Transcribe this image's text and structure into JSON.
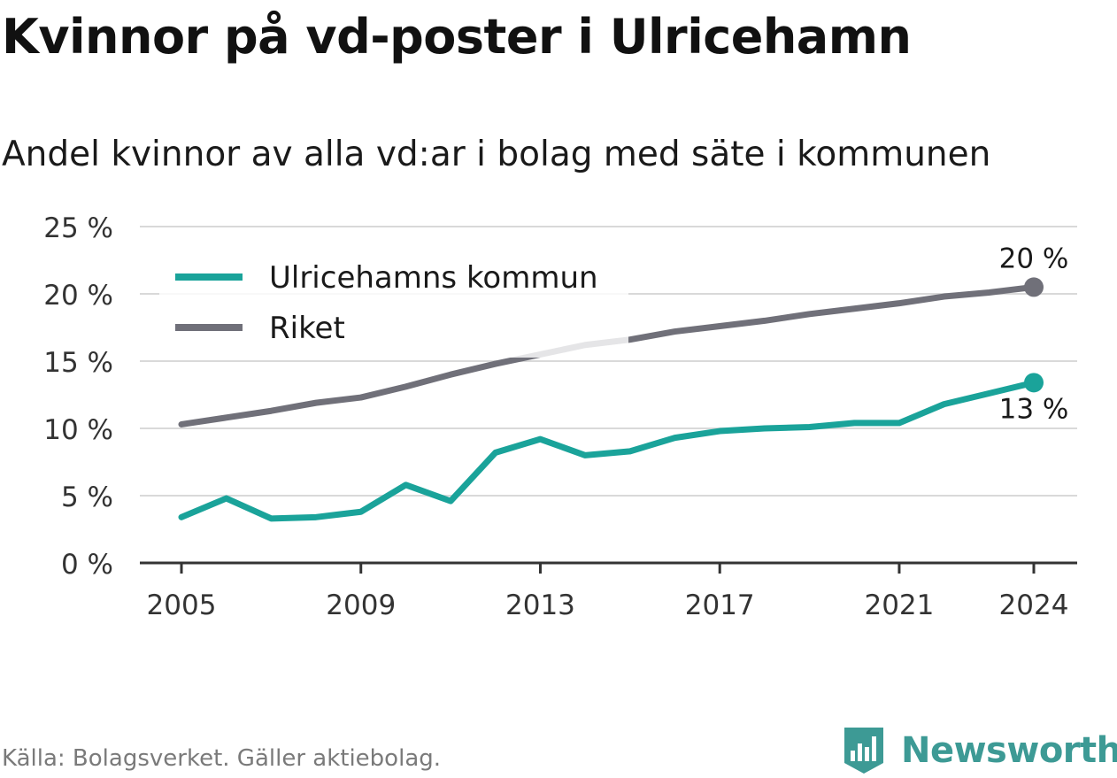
{
  "title": "Kvinnor på vd-poster i Ulricehamn",
  "subtitle": "Andel kvinnor av alla vd:ar i bolag med säte i kommunen",
  "source": "Källa: Bolagsverket. Gäller aktiebolag.",
  "brand": {
    "name": "Newsworthy",
    "icon": "newsworthy-logo-icon",
    "color": "#3d9a95"
  },
  "chart_data": {
    "type": "line",
    "x": [
      2005,
      2006,
      2007,
      2008,
      2009,
      2010,
      2011,
      2012,
      2013,
      2014,
      2015,
      2016,
      2017,
      2018,
      2019,
      2020,
      2021,
      2022,
      2023,
      2024
    ],
    "series": [
      {
        "name": "Ulricehamns kommun",
        "color": "#1aa39a",
        "values": [
          3.4,
          4.8,
          3.3,
          3.4,
          3.8,
          5.8,
          4.6,
          8.2,
          9.2,
          8.0,
          8.3,
          9.3,
          9.8,
          10.0,
          10.1,
          10.4,
          10.4,
          11.8,
          12.6,
          13.4
        ],
        "end_label": "13 %"
      },
      {
        "name": "Riket",
        "color": "#707079",
        "values": [
          10.3,
          10.8,
          11.3,
          11.9,
          12.3,
          13.1,
          14.0,
          14.8,
          15.5,
          16.2,
          16.6,
          17.2,
          17.6,
          18.0,
          18.5,
          18.9,
          19.3,
          19.8,
          20.1,
          20.5
        ],
        "end_label": "20 %"
      }
    ],
    "ylim": [
      0,
      25
    ],
    "yticks": [
      0,
      5,
      10,
      15,
      20,
      25
    ],
    "ytick_labels": [
      "0 %",
      "5 %",
      "10 %",
      "15 %",
      "20 %",
      "25 %"
    ],
    "xticks": [
      2005,
      2009,
      2013,
      2017,
      2021,
      2024
    ],
    "xtick_labels": [
      "2005",
      "2009",
      "2013",
      "2017",
      "2021",
      "2024"
    ],
    "xlabel": "",
    "ylabel": "",
    "grid": true,
    "legend": "top-left",
    "gridline_color": "#d9d9d9",
    "axis_color": "#333333"
  }
}
